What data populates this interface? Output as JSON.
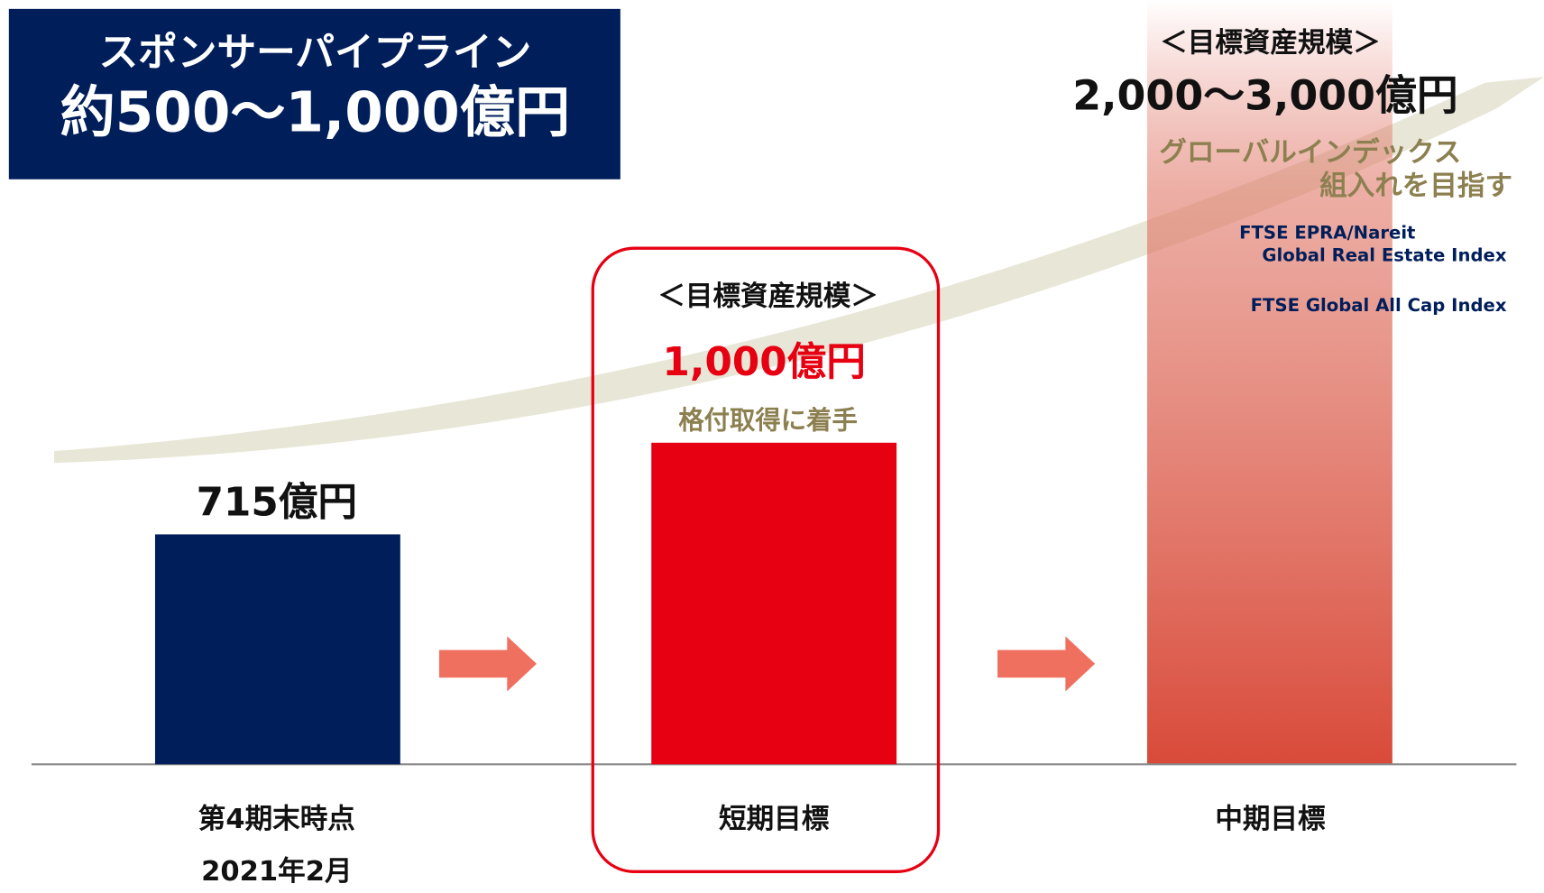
{
  "chart_data": {
    "type": "bar",
    "categories": [
      "第4期末時点",
      "短期目標",
      "中期目標"
    ],
    "category_sublabel": "2021年2月",
    "values": [
      715,
      1000,
      null
    ],
    "value_labels": [
      "715億円",
      "1,000億円",
      null
    ],
    "colors": [
      "#001e5a",
      "#e60012",
      null
    ]
  },
  "pipeline": {
    "title": "スポンサーパイプライン",
    "amount": "約500〜1,000億円"
  },
  "short_term": {
    "heading": "＜目標資産規模＞",
    "note": "格付取得に着手"
  },
  "mid_term": {
    "heading": "＜目標資産規模＞",
    "amount": "2,000〜3,000億円",
    "note": [
      "グローバルインデックス",
      "組入れを目指す"
    ],
    "indices": [
      "FTSE EPRA/Nareit",
      "Global Real Estate Index",
      "FTSE Global All Cap Index"
    ]
  }
}
